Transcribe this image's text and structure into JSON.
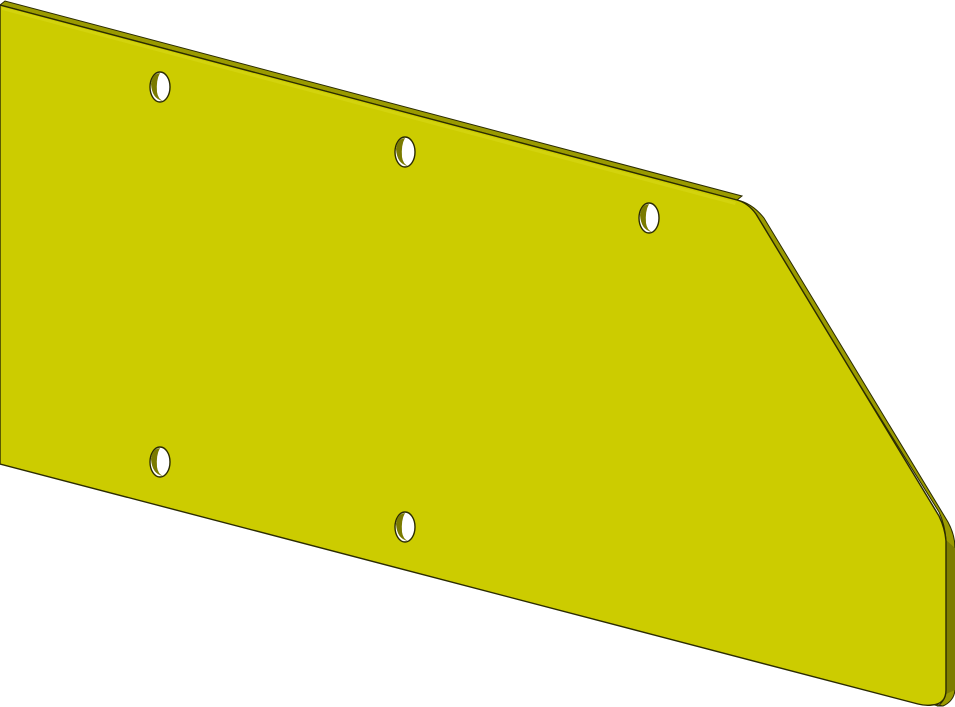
{
  "scene": {
    "subject": "sheet-metal-plate",
    "hole_count": 5,
    "colors": {
      "background": "#ffffff",
      "plate_face": "#cccc00",
      "plate_edge": "#9a9a00",
      "plate_edge_dark": "#6f6f00",
      "outline": "#2b2b00",
      "hole_fill": "#ffffff",
      "hole_wall": "#7a7a00"
    }
  }
}
